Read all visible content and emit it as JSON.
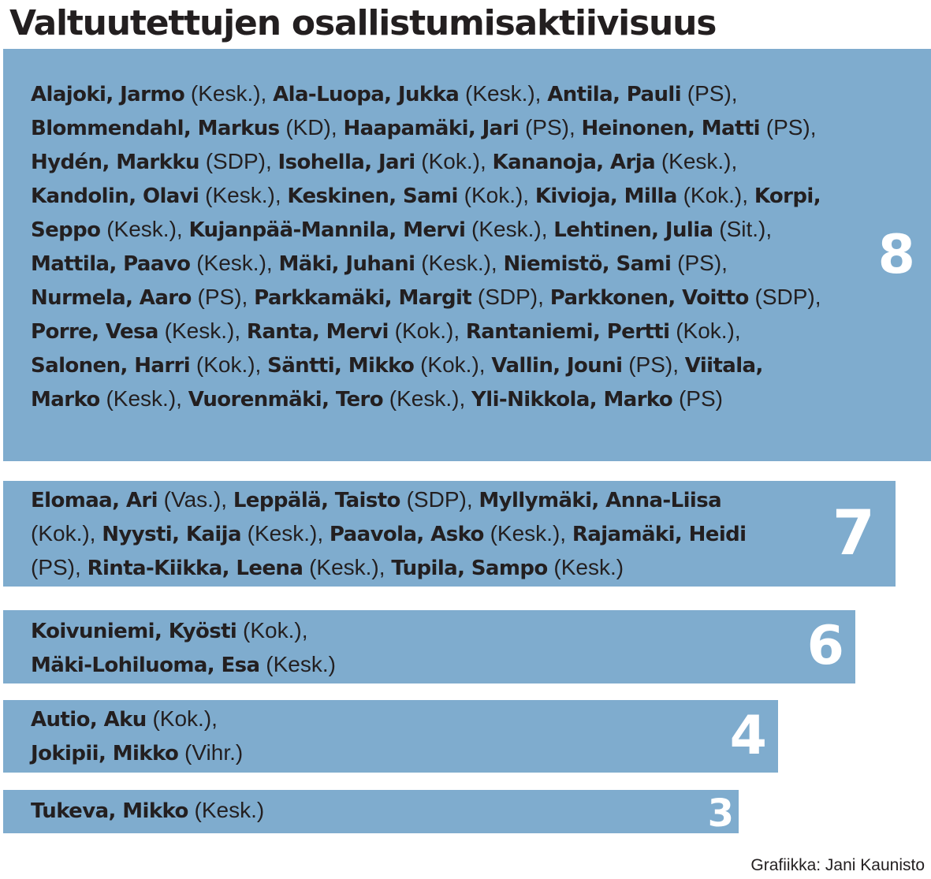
{
  "title": "Valtuutettujen osallistumisaktiivisuus",
  "credit": "Grafiikka: Jani Kaunisto",
  "colors": {
    "bar": "#7facce",
    "text": "#231f20",
    "value": "#ffffff"
  },
  "groups": [
    {
      "value": "8",
      "members": [
        {
          "name": "Alajoki, Jarmo",
          "party": "Kesk."
        },
        {
          "name": "Ala-Luopa, Jukka",
          "party": "Kesk."
        },
        {
          "name": "Antila, Pauli",
          "party": "PS"
        },
        {
          "name": "Blommendahl, Markus",
          "party": "KD"
        },
        {
          "name": "Haapamäki, Jari",
          "party": "PS"
        },
        {
          "name": "Heinonen, Matti",
          "party": "PS"
        },
        {
          "name": "Hydén, Markku",
          "party": "SDP"
        },
        {
          "name": "Isohella, Jari",
          "party": "Kok."
        },
        {
          "name": "Kananoja, Arja",
          "party": "Kesk."
        },
        {
          "name": "Kandolin, Olavi",
          "party": "Kesk."
        },
        {
          "name": "Keskinen, Sami",
          "party": "Kok."
        },
        {
          "name": "Kivioja, Milla",
          "party": "Kok."
        },
        {
          "name": "Korpi, Seppo",
          "party": "Kesk."
        },
        {
          "name": "Kujanpää-Mannila, Mervi",
          "party": "Kesk."
        },
        {
          "name": "Lehtinen, Julia",
          "party": "Sit."
        },
        {
          "name": "Mattila, Paavo",
          "party": "Kesk."
        },
        {
          "name": "Mäki, Juhani",
          "party": "Kesk."
        },
        {
          "name": "Niemistö, Sami",
          "party": "PS"
        },
        {
          "name": "Nurmela, Aaro",
          "party": "PS"
        },
        {
          "name": "Parkkamäki, Margit",
          "party": "SDP"
        },
        {
          "name": "Parkkonen, Voitto",
          "party": "SDP"
        },
        {
          "name": "Porre, Vesa",
          "party": "Kesk."
        },
        {
          "name": "Ranta, Mervi",
          "party": "Kok."
        },
        {
          "name": "Rantaniemi, Pertti",
          "party": "Kok."
        },
        {
          "name": "Salonen, Harri",
          "party": "Kok."
        },
        {
          "name": "Säntti, Mikko",
          "party": "Kok."
        },
        {
          "name": "Vallin, Jouni",
          "party": "PS"
        },
        {
          "name": "Viitala, Marko",
          "party": "Kesk."
        },
        {
          "name": "Vuorenmäki, Tero",
          "party": "Kesk."
        },
        {
          "name": "Yli-Nikkola, Marko",
          "party": "PS"
        }
      ]
    },
    {
      "value": "7",
      "members": [
        {
          "name": "Elomaa, Ari",
          "party": "Vas."
        },
        {
          "name": "Leppälä, Taisto",
          "party": "SDP"
        },
        {
          "name": "Myllymäki, Anna-Liisa",
          "party": "Kok."
        },
        {
          "name": "Nyysti, Kaija",
          "party": "Kesk."
        },
        {
          "name": "Paavola, Asko",
          "party": "Kesk."
        },
        {
          "name": "Rajamäki, Heidi",
          "party": "PS"
        },
        {
          "name": "Rinta-Kiikka, Leena",
          "party": "Kesk."
        },
        {
          "name": "Tupila, Sampo",
          "party": "Kesk."
        }
      ]
    },
    {
      "value": "6",
      "members": [
        {
          "name": "Koivuniemi, Kyösti",
          "party": "Kok."
        },
        {
          "name": "Mäki-Lohiluoma, Esa",
          "party": "Kesk."
        }
      ]
    },
    {
      "value": "4",
      "members": [
        {
          "name": "Autio, Aku",
          "party": "Kok."
        },
        {
          "name": "Jokipii, Mikko",
          "party": "Vihr."
        }
      ]
    },
    {
      "value": "3",
      "members": [
        {
          "name": "Tukeva, Mikko",
          "party": "Kesk."
        }
      ]
    }
  ],
  "chart_data": {
    "type": "bar",
    "orientation": "horizontal",
    "title": "Valtuutettujen osallistumisaktiivisuus",
    "categories": [
      "8",
      "7",
      "6",
      "4",
      "3"
    ],
    "values": [
      8,
      7,
      6,
      4,
      3
    ],
    "member_counts": [
      30,
      8,
      2,
      2,
      1
    ],
    "xlabel": "",
    "ylabel": "",
    "grid": false,
    "legend": null,
    "annotations": [
      "Grafiikka: Jani Kaunisto"
    ]
  }
}
